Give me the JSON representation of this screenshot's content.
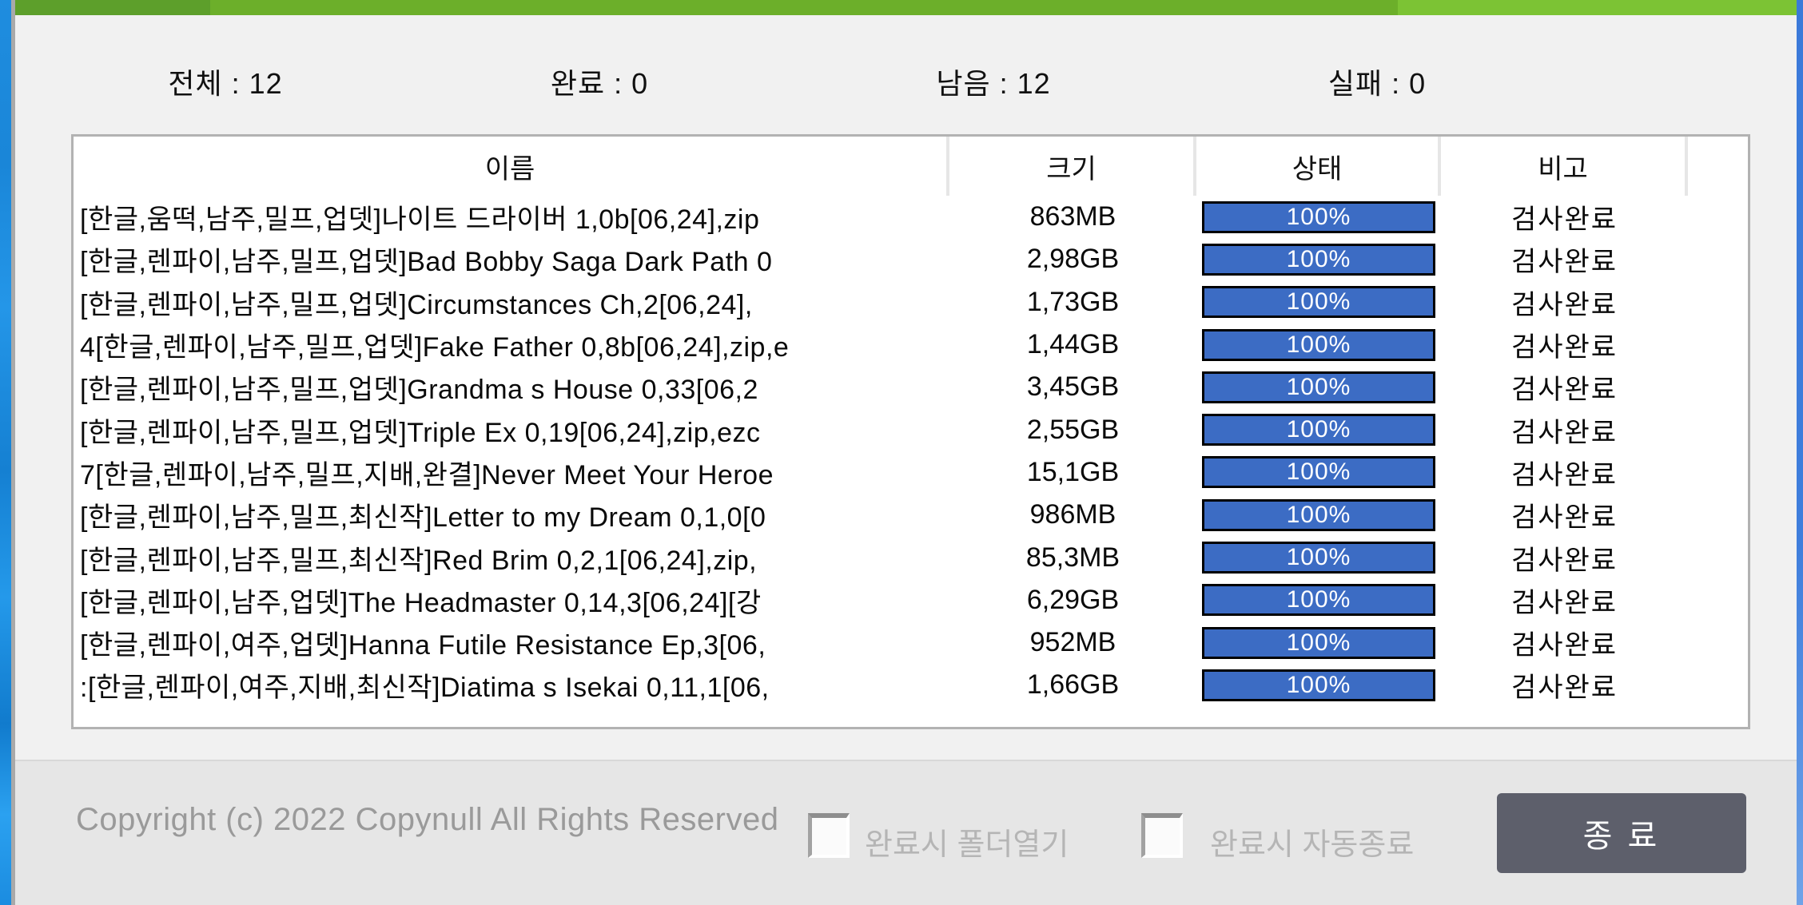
{
  "stats": {
    "separator": " : ",
    "items": [
      {
        "label": "전체",
        "value": "12"
      },
      {
        "label": "완료",
        "value": "0"
      },
      {
        "label": "남음",
        "value": "12"
      },
      {
        "label": "실패",
        "value": "0"
      }
    ]
  },
  "table": {
    "headers": {
      "name": "이름",
      "size": "크기",
      "status": "상태",
      "remark": "비고"
    },
    "rows": [
      {
        "name": "[한글,움떡,남주,밀프,업뎃]나이트 드라이버 1,0b[06,24],zip",
        "size": "863MB",
        "progress": 100,
        "progress_label": "100%",
        "remark": "검사완료"
      },
      {
        "name": "[한글,렌파이,남주,밀프,업뎃]Bad Bobby Saga Dark Path 0",
        "size": "2,98GB",
        "progress": 100,
        "progress_label": "100%",
        "remark": "검사완료"
      },
      {
        "name": "[한글,렌파이,남주,밀프,업뎃]Circumstances Ch,2[06,24],",
        "size": "1,73GB",
        "progress": 100,
        "progress_label": "100%",
        "remark": "검사완료"
      },
      {
        "name": "4[한글,렌파이,남주,밀프,업뎃]Fake Father 0,8b[06,24],zip,e",
        "size": "1,44GB",
        "progress": 100,
        "progress_label": "100%",
        "remark": "검사완료"
      },
      {
        "name": "[한글,렌파이,남주,밀프,업뎃]Grandma s House 0,33[06,2",
        "size": "3,45GB",
        "progress": 100,
        "progress_label": "100%",
        "remark": "검사완료"
      },
      {
        "name": "[한글,렌파이,남주,밀프,업뎃]Triple Ex 0,19[06,24],zip,ezc",
        "size": "2,55GB",
        "progress": 100,
        "progress_label": "100%",
        "remark": "검사완료"
      },
      {
        "name": "7[한글,렌파이,남주,밀프,지배,완결]Never Meet Your Heroe",
        "size": "15,1GB",
        "progress": 100,
        "progress_label": "100%",
        "remark": "검사완료"
      },
      {
        "name": "[한글,렌파이,남주,밀프,최신작]Letter to my Dream 0,1,0[0",
        "size": "986MB",
        "progress": 100,
        "progress_label": "100%",
        "remark": "검사완료"
      },
      {
        "name": "[한글,렌파이,남주,밀프,최신작]Red Brim 0,2,1[06,24],zip,",
        "size": "85,3MB",
        "progress": 100,
        "progress_label": "100%",
        "remark": "검사완료"
      },
      {
        "name": "[한글,렌파이,남주,업뎃]The Headmaster 0,14,3[06,24][강",
        "size": "6,29GB",
        "progress": 100,
        "progress_label": "100%",
        "remark": "검사완료"
      },
      {
        "name": "[한글,렌파이,여주,업뎃]Hanna Futile Resistance Ep,3[06,",
        "size": "952MB",
        "progress": 100,
        "progress_label": "100%",
        "remark": "검사완료"
      },
      {
        "name": ":[한글,렌파이,여주,지배,최신작]Diatima s Isekai 0,11,1[06,",
        "size": "1,66GB",
        "progress": 100,
        "progress_label": "100%",
        "remark": "검사완료"
      }
    ]
  },
  "footer": {
    "copyright": "Copyright (c) 2022 Copynull All Rights Reserved",
    "checkbox_open_folder": {
      "label": "완료시 폴더열기",
      "checked": false
    },
    "checkbox_auto_close": {
      "label": "완료시 자동종료",
      "checked": false
    },
    "close_button_label": "종 료"
  },
  "colors": {
    "titlebar_green_left": "#5d9f2b",
    "titlebar_green_mid": "#6caf2a",
    "titlebar_green_right": "#7cc334",
    "progress_blue": "#3c6cc4",
    "button_bg": "#5d5f6b"
  }
}
